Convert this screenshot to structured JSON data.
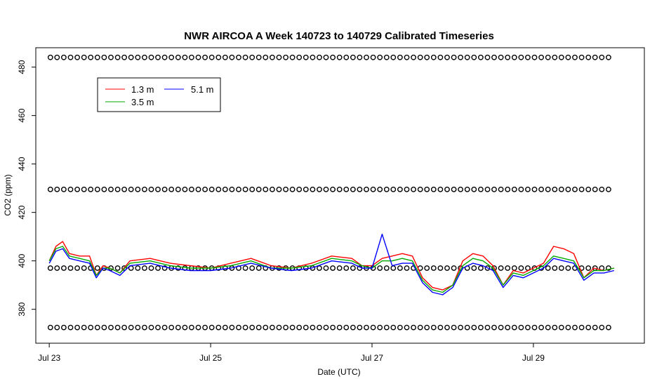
{
  "chart_data": {
    "type": "line",
    "title": "NWR AIRCOA A  Week 140723 to 140729  Calibrated Timeseries",
    "xlabel": "Date (UTC)",
    "ylabel": "CO2 (ppm)",
    "xlim": [
      "2014-07-22T20:00",
      "2014-07-30T09:00"
    ],
    "ylim": [
      366,
      488
    ],
    "x_ticks": [
      {
        "date": "2014-07-23T00:00",
        "label": "Jul 23"
      },
      {
        "date": "2014-07-25T00:00",
        "label": "Jul 25"
      },
      {
        "date": "2014-07-27T00:00",
        "label": "Jul 27"
      },
      {
        "date": "2014-07-29T00:00",
        "label": "Jul 29"
      }
    ],
    "y_ticks": [
      380,
      400,
      420,
      440,
      460,
      480
    ],
    "grid": false,
    "legend": {
      "placement": "top-left",
      "entries": [
        {
          "label": "1.3 m",
          "color": "#ff0000"
        },
        {
          "label": "5.1 m",
          "color": "#0000ff"
        },
        {
          "label": "3.5 m",
          "color": "#00aa00"
        }
      ]
    },
    "series": [
      {
        "name": "1.3 m",
        "color": "#ff0000",
        "x": [
          "2014-07-23T00:00",
          "2014-07-23T02:00",
          "2014-07-23T04:00",
          "2014-07-23T06:00",
          "2014-07-23T09:00",
          "2014-07-23T12:00",
          "2014-07-23T14:00",
          "2014-07-23T16:00",
          "2014-07-23T18:00",
          "2014-07-23T21:00",
          "2014-07-24T00:00",
          "2014-07-24T06:00",
          "2014-07-24T12:00",
          "2014-07-24T18:00",
          "2014-07-25T00:00",
          "2014-07-25T06:00",
          "2014-07-25T12:00",
          "2014-07-25T18:00",
          "2014-07-26T00:00",
          "2014-07-26T06:00",
          "2014-07-26T12:00",
          "2014-07-26T18:00",
          "2014-07-26T21:00",
          "2014-07-27T00:00",
          "2014-07-27T03:00",
          "2014-07-27T06:00",
          "2014-07-27T09:00",
          "2014-07-27T12:00",
          "2014-07-27T15:00",
          "2014-07-27T18:00",
          "2014-07-27T21:00",
          "2014-07-28T00:00",
          "2014-07-28T03:00",
          "2014-07-28T06:00",
          "2014-07-28T09:00",
          "2014-07-28T12:00",
          "2014-07-28T15:00",
          "2014-07-28T18:00",
          "2014-07-28T21:00",
          "2014-07-29T00:00",
          "2014-07-29T03:00",
          "2014-07-29T06:00",
          "2014-07-29T09:00",
          "2014-07-29T12:00",
          "2014-07-29T15:00",
          "2014-07-29T18:00",
          "2014-07-29T21:00",
          "2014-07-30T00:00"
        ],
        "y": [
          400,
          406,
          408,
          403,
          402,
          402,
          394,
          398,
          397,
          395,
          400,
          401,
          399,
          398,
          397,
          399,
          401,
          398,
          397,
          399,
          402,
          401,
          398,
          398,
          401,
          402,
          403,
          402,
          393,
          389,
          388,
          390,
          400,
          403,
          402,
          398,
          390,
          396,
          395,
          397,
          399,
          406,
          405,
          403,
          393,
          397,
          396,
          397
        ]
      },
      {
        "name": "3.5 m",
        "color": "#00aa00",
        "x": [
          "2014-07-23T00:00",
          "2014-07-23T02:00",
          "2014-07-23T04:00",
          "2014-07-23T06:00",
          "2014-07-23T09:00",
          "2014-07-23T12:00",
          "2014-07-23T14:00",
          "2014-07-23T16:00",
          "2014-07-23T18:00",
          "2014-07-23T21:00",
          "2014-07-24T00:00",
          "2014-07-24T06:00",
          "2014-07-24T12:00",
          "2014-07-24T18:00",
          "2014-07-25T00:00",
          "2014-07-25T06:00",
          "2014-07-25T12:00",
          "2014-07-25T18:00",
          "2014-07-26T00:00",
          "2014-07-26T06:00",
          "2014-07-26T12:00",
          "2014-07-26T18:00",
          "2014-07-26T21:00",
          "2014-07-27T00:00",
          "2014-07-27T03:00",
          "2014-07-27T06:00",
          "2014-07-27T09:00",
          "2014-07-27T12:00",
          "2014-07-27T15:00",
          "2014-07-27T18:00",
          "2014-07-27T21:00",
          "2014-07-28T00:00",
          "2014-07-28T03:00",
          "2014-07-28T06:00",
          "2014-07-28T09:00",
          "2014-07-28T12:00",
          "2014-07-28T15:00",
          "2014-07-28T18:00",
          "2014-07-28T21:00",
          "2014-07-29T00:00",
          "2014-07-29T03:00",
          "2014-07-29T06:00",
          "2014-07-29T09:00",
          "2014-07-29T12:00",
          "2014-07-29T15:00",
          "2014-07-29T18:00",
          "2014-07-29T21:00",
          "2014-07-30T00:00"
        ],
        "y": [
          400,
          405,
          406,
          402,
          401,
          400,
          394,
          397,
          397,
          395,
          399,
          400,
          398,
          397,
          397,
          398,
          400,
          397,
          397,
          398,
          401,
          400,
          398,
          397,
          400,
          400,
          401,
          400,
          392,
          388,
          387,
          390,
          398,
          401,
          400,
          397,
          390,
          395,
          394,
          396,
          398,
          402,
          401,
          400,
          393,
          396,
          396,
          397
        ]
      },
      {
        "name": "5.1 m",
        "color": "#0000ff",
        "x": [
          "2014-07-23T00:00",
          "2014-07-23T02:00",
          "2014-07-23T04:00",
          "2014-07-23T06:00",
          "2014-07-23T09:00",
          "2014-07-23T12:00",
          "2014-07-23T14:00",
          "2014-07-23T16:00",
          "2014-07-23T18:00",
          "2014-07-23T21:00",
          "2014-07-24T00:00",
          "2014-07-24T06:00",
          "2014-07-24T12:00",
          "2014-07-24T18:00",
          "2014-07-25T00:00",
          "2014-07-25T06:00",
          "2014-07-25T12:00",
          "2014-07-25T18:00",
          "2014-07-26T00:00",
          "2014-07-26T06:00",
          "2014-07-26T12:00",
          "2014-07-26T18:00",
          "2014-07-26T21:00",
          "2014-07-27T00:00",
          "2014-07-27T03:00",
          "2014-07-27T06:00",
          "2014-07-27T09:00",
          "2014-07-27T12:00",
          "2014-07-27T15:00",
          "2014-07-27T18:00",
          "2014-07-27T21:00",
          "2014-07-28T00:00",
          "2014-07-28T03:00",
          "2014-07-28T06:00",
          "2014-07-28T09:00",
          "2014-07-28T12:00",
          "2014-07-28T15:00",
          "2014-07-28T18:00",
          "2014-07-28T21:00",
          "2014-07-29T00:00",
          "2014-07-29T03:00",
          "2014-07-29T06:00",
          "2014-07-29T09:00",
          "2014-07-29T12:00",
          "2014-07-29T15:00",
          "2014-07-29T18:00",
          "2014-07-29T21:00",
          "2014-07-30T00:00"
        ],
        "y": [
          399,
          404,
          405,
          401,
          400,
          399,
          393,
          397,
          396,
          394,
          398,
          399,
          397,
          396,
          396,
          397,
          399,
          397,
          396,
          397,
          400,
          399,
          397,
          397,
          411,
          398,
          399,
          399,
          391,
          387,
          386,
          389,
          397,
          399,
          398,
          396,
          389,
          394,
          393,
          395,
          397,
          401,
          400,
          399,
          392,
          395,
          395,
          396
        ]
      }
    ],
    "calibration_markers": {
      "symbol": "open circle",
      "color": "#000000",
      "levels": [
        372.5,
        397,
        429.5,
        484
      ],
      "x_start": "2014-07-23T00:20",
      "x_end": "2014-07-29T23:40",
      "interval_hours": 2
    }
  }
}
